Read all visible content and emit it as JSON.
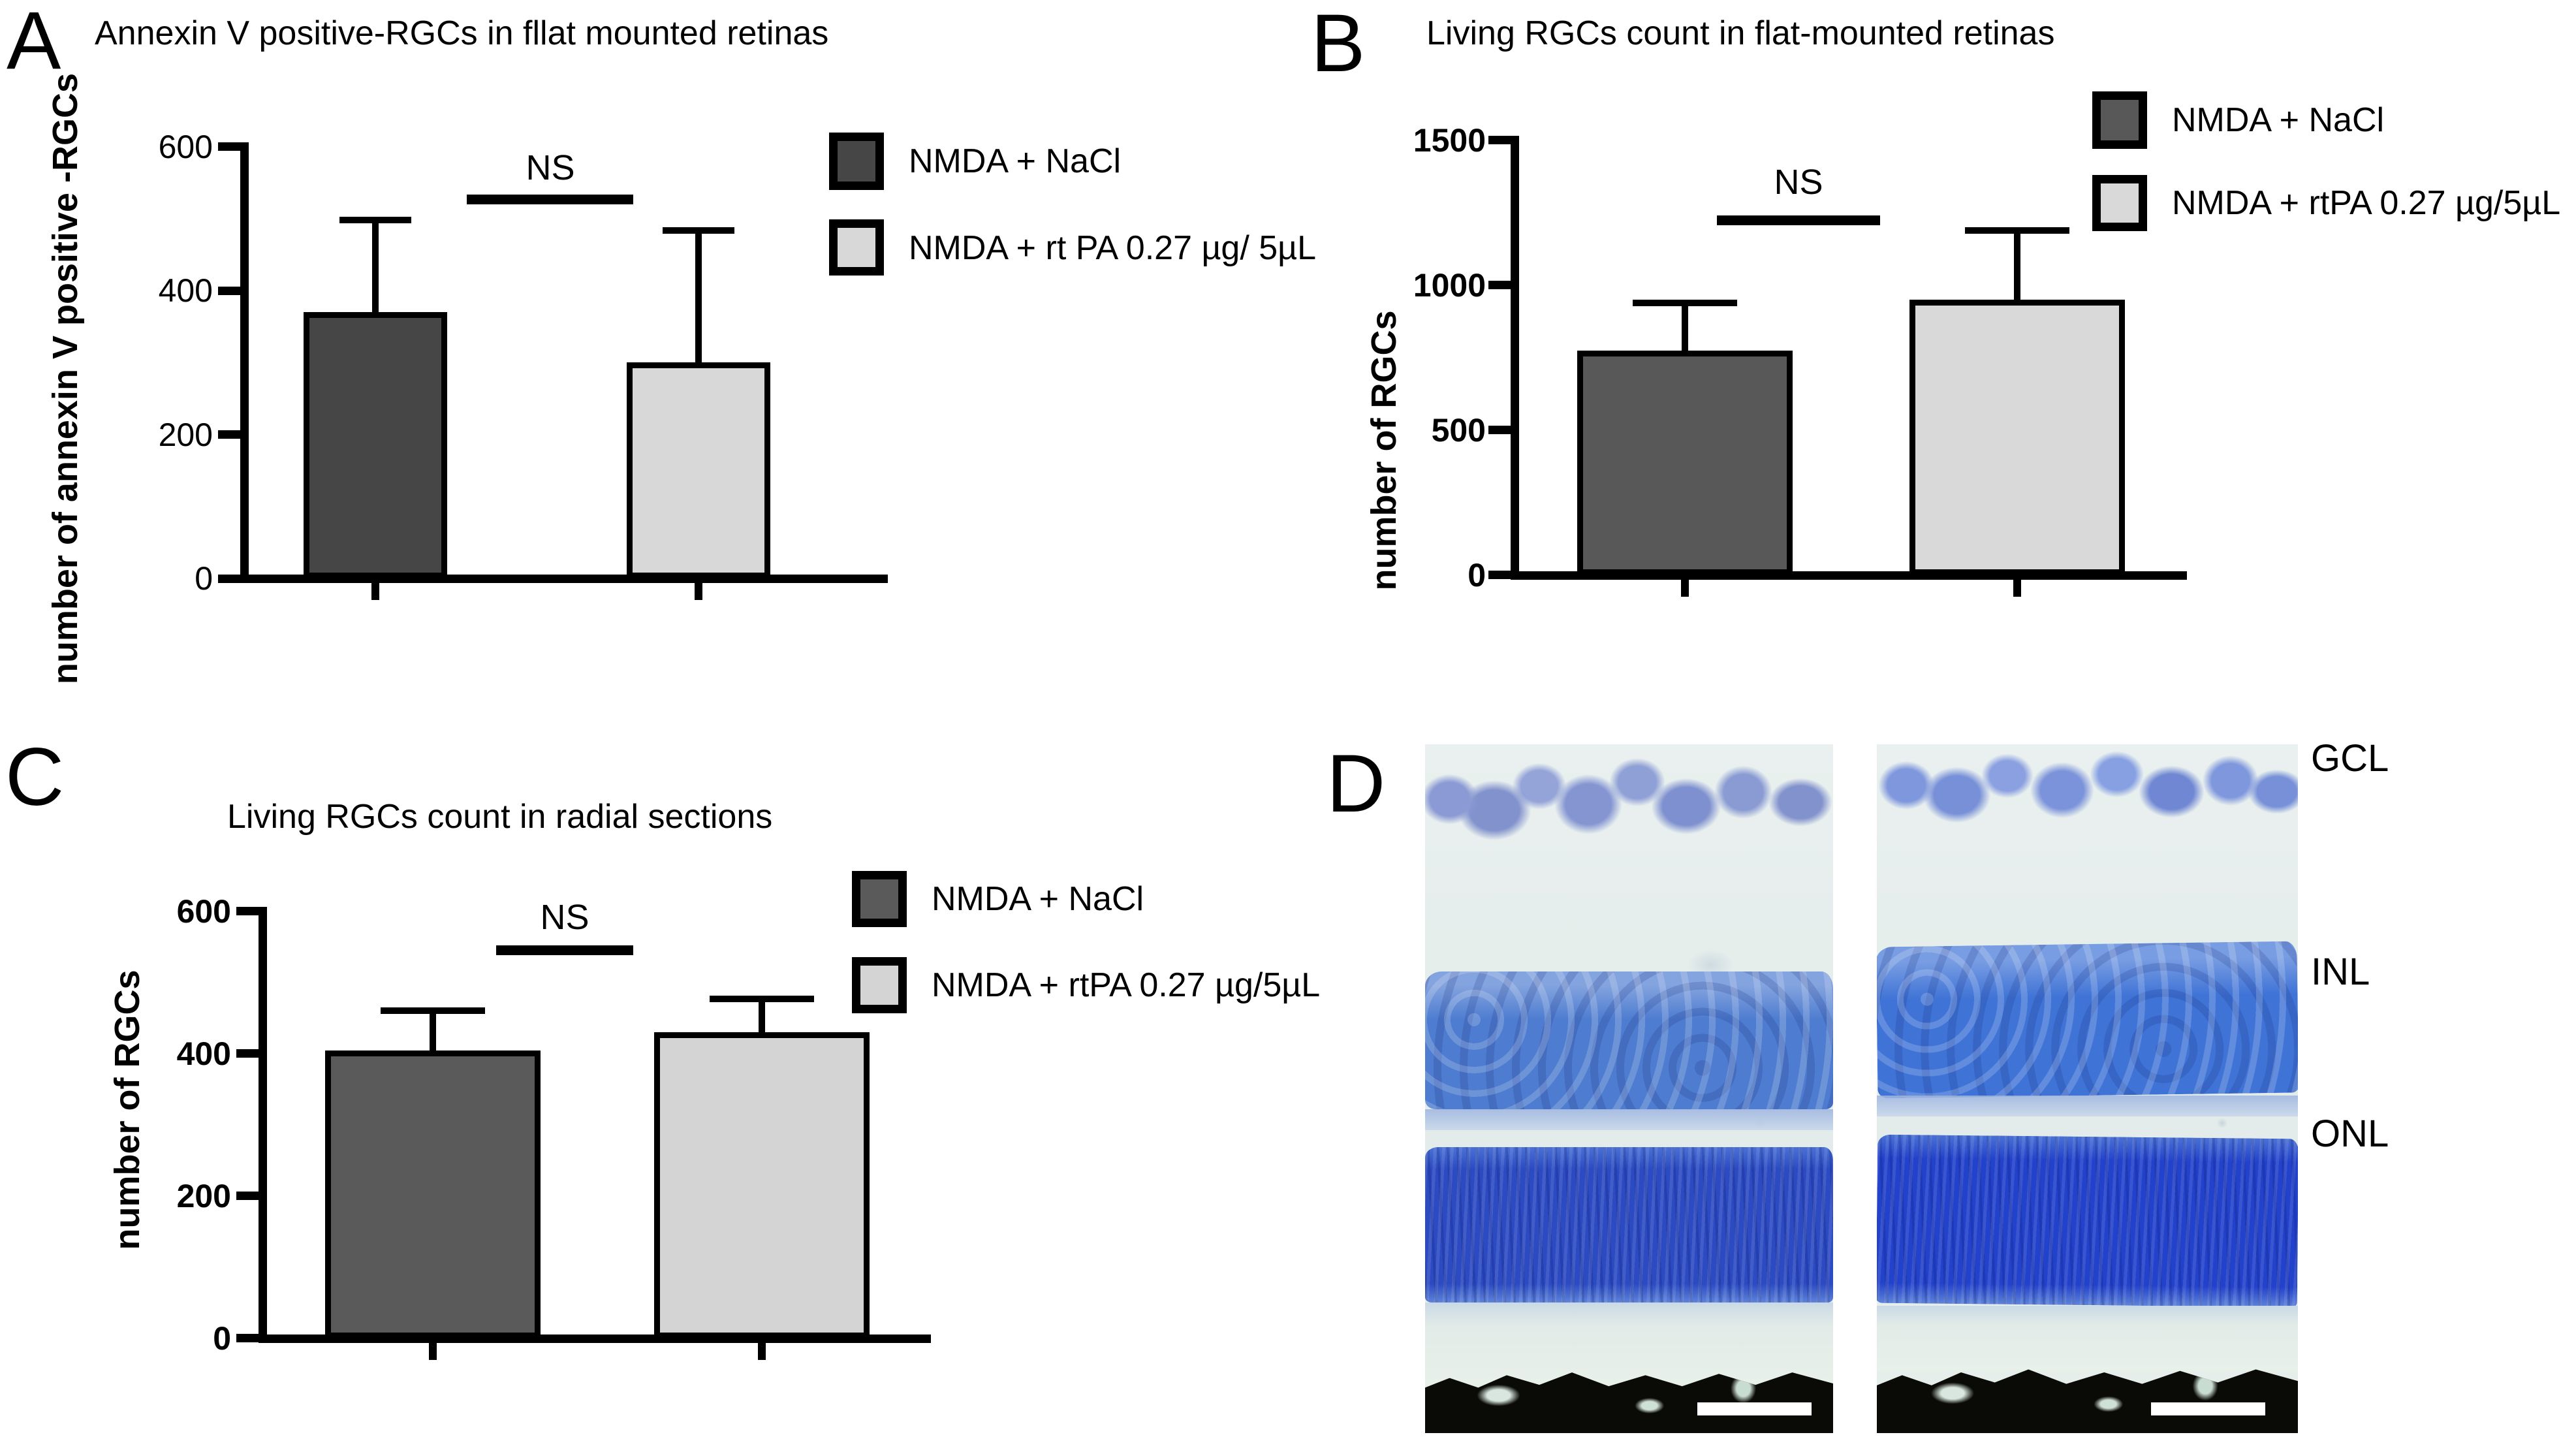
{
  "figure": {
    "panels": {
      "a": {
        "letter": "A"
      },
      "b": {
        "letter": "B"
      },
      "c": {
        "letter": "C"
      },
      "d": {
        "letter": "D",
        "layer_labels": [
          "GCL",
          "INL",
          "ONL"
        ],
        "micrograph_count": 2,
        "scale_bar_count": 2
      }
    }
  },
  "chart_data": [
    {
      "type": "bar",
      "panel": "A",
      "title": "Annexin V positive-RGCs in fllat mounted retinas",
      "ylabel": "number of annexin V positive -RGCs",
      "xlabel": "",
      "categories": [
        "NMDA + NaCl",
        "NMDA + rt PA 0.27 µg/ 5µL"
      ],
      "values": [
        370,
        300
      ],
      "error_caps": [
        503,
        488
      ],
      "ylim": [
        0,
        600
      ],
      "yticks": [
        0,
        200,
        400,
        600
      ],
      "ytick_labels": [
        "600",
        "400",
        "200",
        "0"
      ],
      "annotation": "NS",
      "grid": false,
      "legend_position": "top-right",
      "bar_colors": [
        "#464646",
        "#d8d8d8"
      ]
    },
    {
      "type": "bar",
      "panel": "B",
      "title": "Living RGCs count in flat-mounted retinas",
      "ylabel": "number of RGCs",
      "xlabel": "",
      "categories": [
        "NMDA + NaCl",
        "NMDA + rtPA 0.27 µg/5µL"
      ],
      "values": [
        775,
        950
      ],
      "error_caps": [
        950,
        1200
      ],
      "ylim": [
        0,
        1500
      ],
      "yticks": [
        0,
        500,
        1000,
        1500
      ],
      "ytick_labels": [
        "1500",
        "1000",
        "500",
        "0"
      ],
      "annotation": "NS",
      "grid": false,
      "legend_position": "top-right",
      "bar_colors": [
        "#585858",
        "#d9d9d9"
      ]
    },
    {
      "type": "bar",
      "panel": "C",
      "title": "Living RGCs count in radial sections",
      "ylabel": "number of RGCs",
      "xlabel": "",
      "categories": [
        "NMDA + NaCl",
        "NMDA + rtPA 0.27 µg/5µL"
      ],
      "values": [
        405,
        430
      ],
      "error_caps": [
        465,
        482
      ],
      "ylim": [
        0,
        600
      ],
      "yticks": [
        0,
        200,
        400,
        600
      ],
      "ytick_labels": [
        "600",
        "400",
        "200",
        "0"
      ],
      "annotation": "NS",
      "grid": false,
      "legend_position": "top-right",
      "bar_colors": [
        "#5a5a5a",
        "#d4d4d4"
      ]
    }
  ]
}
